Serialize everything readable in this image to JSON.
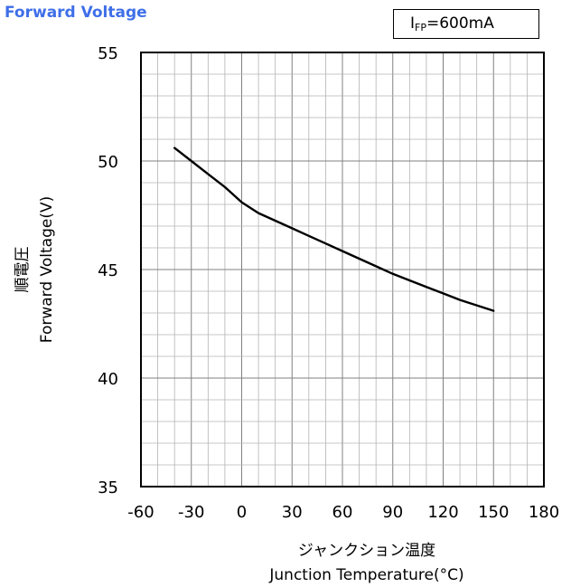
{
  "title": "Forward Voltage",
  "condition": {
    "symbol": "I",
    "subscript": "FP",
    "value": "=600mA"
  },
  "chart_data": {
    "type": "line",
    "title": "Forward Voltage",
    "xlabel_ja": "ジャンクション温度",
    "xlabel": "Junction Temperature(°C)",
    "ylabel_ja": "順電圧",
    "ylabel": "Forward Voltage(V)",
    "xlim": [
      -60,
      180
    ],
    "ylim": [
      35,
      55
    ],
    "x_ticks": [
      -60,
      -30,
      0,
      30,
      60,
      90,
      120,
      150,
      180
    ],
    "y_ticks": [
      35,
      40,
      45,
      50,
      55
    ],
    "grid": true,
    "series": [
      {
        "x": [
          -40,
          -30,
          -20,
          -10,
          0,
          10,
          20,
          30,
          40,
          50,
          60,
          70,
          80,
          90,
          100,
          110,
          120,
          130,
          140,
          150
        ],
        "y": [
          50.6,
          50.0,
          49.4,
          48.8,
          48.1,
          47.6,
          47.25,
          46.9,
          46.55,
          46.2,
          45.85,
          45.5,
          45.15,
          44.8,
          44.5,
          44.2,
          43.9,
          43.6,
          43.35,
          43.1
        ]
      }
    ]
  }
}
